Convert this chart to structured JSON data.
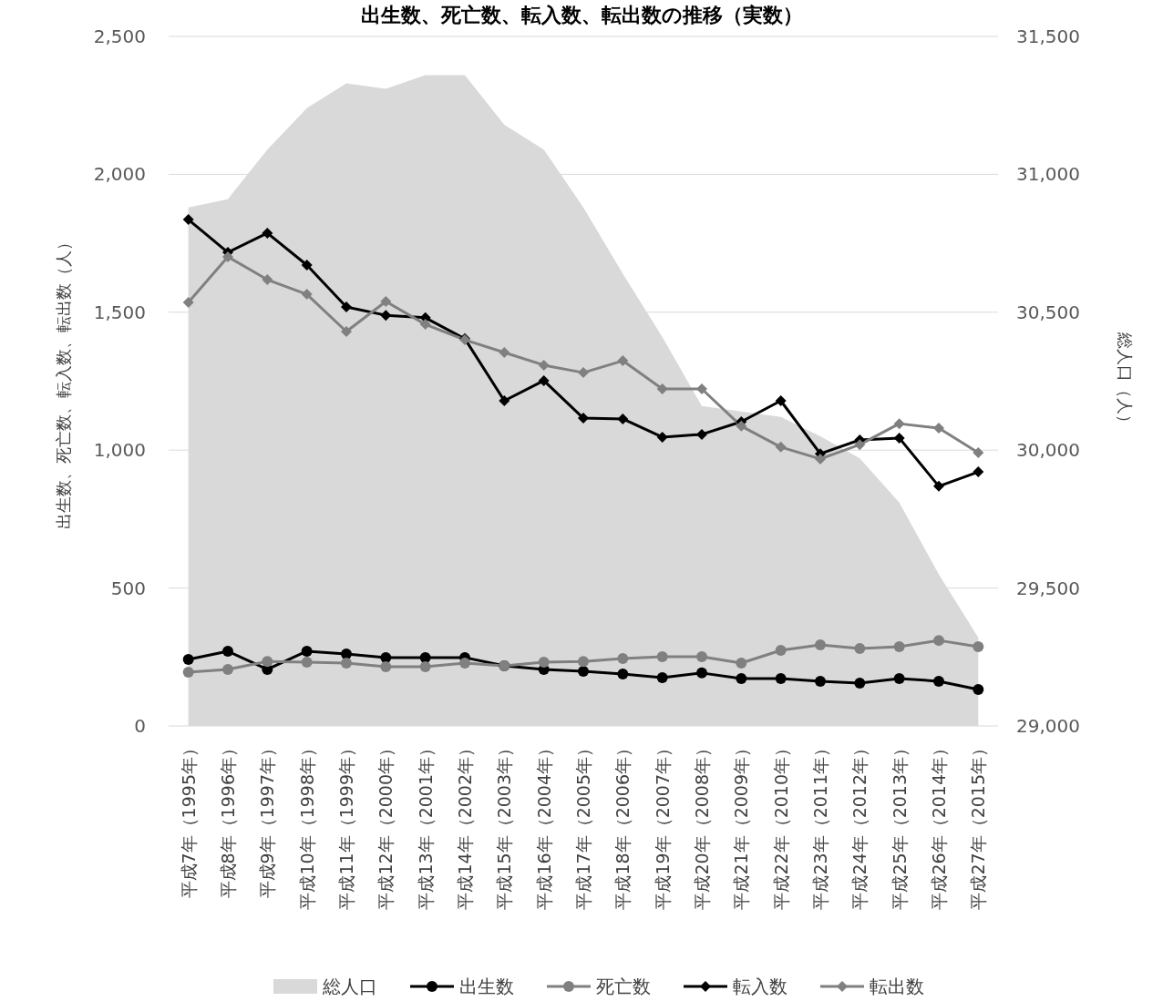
{
  "chart_data": {
    "type": "line",
    "title": "出生数、死亡数、転入数、転出数の推移（実数）",
    "ylabel": "出生数、死亡数、転入数、転出数（人）",
    "y2label": "総人口（人）",
    "categories": [
      "平成7年（1995年）",
      "平成8年（1996年）",
      "平成9年（1997年）",
      "平成10年（1998年）",
      "平成11年（1999年）",
      "平成12年（2000年）",
      "平成13年（2001年）",
      "平成14年（2002年）",
      "平成15年（2003年）",
      "平成16年（2004年）",
      "平成17年（2005年）",
      "平成18年（2006年）",
      "平成19年（2007年）",
      "平成20年（2008年）",
      "平成21年（2009年）",
      "平成22年（2010年）",
      "平成23年（2011年）",
      "平成24年（2012年）",
      "平成25年（2013年）",
      "平成26年（2014年）",
      "平成27年（2015年）"
    ],
    "series": [
      {
        "name": "総人口",
        "type": "area",
        "axis": "y2",
        "color": "#d9d9d9",
        "values": [
          30880,
          30910,
          31090,
          31240,
          31330,
          31310,
          31360,
          31360,
          31180,
          31090,
          30880,
          30640,
          30410,
          30160,
          30140,
          30120,
          30050,
          29970,
          29810,
          29550,
          29320
        ]
      },
      {
        "name": "出生数",
        "marker": "circle",
        "color": "#000000",
        "values": [
          241,
          271,
          205,
          271,
          261,
          248,
          248,
          248,
          218,
          205,
          198,
          188,
          175,
          192,
          172,
          172,
          162,
          155,
          172,
          162,
          132
        ]
      },
      {
        "name": "死亡数",
        "marker": "circle",
        "color": "#808080",
        "values": [
          195,
          205,
          234,
          231,
          228,
          215,
          215,
          228,
          218,
          231,
          234,
          244,
          251,
          251,
          228,
          274,
          294,
          281,
          287,
          310,
          287
        ]
      },
      {
        "name": "転入数",
        "marker": "diamond",
        "color": "#000000",
        "values": [
          1836,
          1717,
          1787,
          1671,
          1519,
          1489,
          1480,
          1404,
          1179,
          1252,
          1116,
          1113,
          1047,
          1057,
          1103,
          1179,
          987,
          1037,
          1044,
          869,
          921
        ]
      },
      {
        "name": "転出数",
        "marker": "diamond",
        "color": "#808080",
        "values": [
          1536,
          1701,
          1618,
          1565,
          1430,
          1539,
          1456,
          1400,
          1354,
          1308,
          1281,
          1324,
          1222,
          1222,
          1087,
          1011,
          968,
          1020,
          1096,
          1080,
          991
        ]
      }
    ],
    "ylim": [
      0,
      2500
    ],
    "yticks": [
      0,
      500,
      {
        "value": 1000,
        "label": "1,000"
      },
      {
        "value": 1500,
        "label": "1,500"
      },
      {
        "value": 2000,
        "label": "2,000"
      },
      {
        "value": 2500,
        "label": "2,500"
      }
    ],
    "y2lim": [
      29000,
      31500
    ],
    "y2ticks": [
      {
        "value": 29000,
        "label": "29,000"
      },
      {
        "value": 29500,
        "label": "29,500"
      },
      {
        "value": 30000,
        "label": "30,000"
      },
      {
        "value": 30500,
        "label": "30,500"
      },
      {
        "value": 31000,
        "label": "31,000"
      },
      {
        "value": 31500,
        "label": "31,500"
      }
    ],
    "grid": "y",
    "legend": "bottom"
  }
}
